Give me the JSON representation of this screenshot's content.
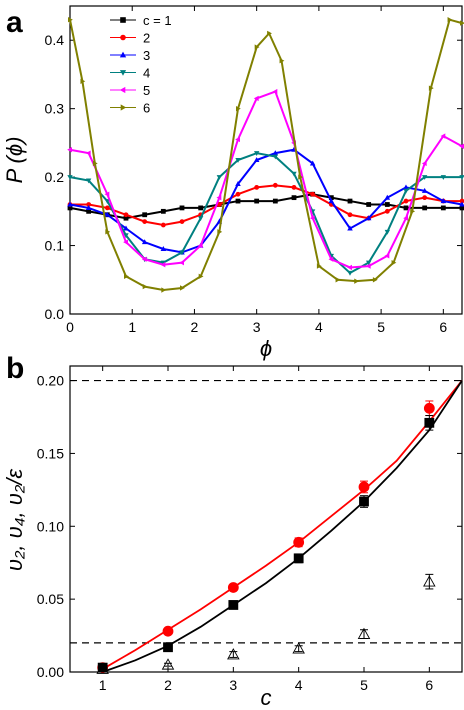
{
  "figure": {
    "panels": [
      "a",
      "b"
    ]
  },
  "chart_data": [
    {
      "panel": "a",
      "type": "scatter",
      "xlabel": "ϕ",
      "ylabel": "P (ϕ)",
      "xlim": [
        0,
        6.3
      ],
      "ylim": [
        0.0,
        0.45
      ],
      "xticks": [
        0,
        1,
        2,
        3,
        4,
        5,
        6
      ],
      "yticks": [
        0.0,
        0.1,
        0.2,
        0.3,
        0.4
      ],
      "ytick_labels": [
        "0.0",
        "0.1",
        "0.2",
        "0.3",
        "0.4"
      ],
      "legend_position": "top-left",
      "series": [
        {
          "name": "c = 1",
          "color": "#000000",
          "marker": "square",
          "x": [
            0,
            0.3,
            0.6,
            0.9,
            1.2,
            1.5,
            1.8,
            2.1,
            2.4,
            2.7,
            3.0,
            3.3,
            3.6,
            3.9,
            4.2,
            4.5,
            4.8,
            5.1,
            5.4,
            5.7,
            6.0,
            6.3
          ],
          "y": [
            0.155,
            0.15,
            0.145,
            0.14,
            0.145,
            0.15,
            0.155,
            0.155,
            0.16,
            0.165,
            0.165,
            0.165,
            0.17,
            0.175,
            0.17,
            0.165,
            0.16,
            0.16,
            0.155,
            0.155,
            0.155,
            0.155
          ]
        },
        {
          "name": "2",
          "color": "#ff0000",
          "marker": "circle",
          "x": [
            0,
            0.3,
            0.6,
            0.9,
            1.2,
            1.5,
            1.8,
            2.1,
            2.4,
            2.7,
            3.0,
            3.3,
            3.6,
            3.9,
            4.2,
            4.5,
            4.8,
            5.1,
            5.4,
            5.7,
            6.0,
            6.3
          ],
          "y": [
            0.16,
            0.16,
            0.155,
            0.145,
            0.135,
            0.13,
            0.135,
            0.145,
            0.16,
            0.175,
            0.185,
            0.188,
            0.185,
            0.175,
            0.16,
            0.145,
            0.14,
            0.15,
            0.165,
            0.17,
            0.165,
            0.165
          ]
        },
        {
          "name": "3",
          "color": "#0000ff",
          "marker": "triangle-up",
          "x": [
            0,
            0.3,
            0.6,
            0.9,
            1.2,
            1.5,
            1.8,
            2.1,
            2.4,
            2.7,
            3.0,
            3.3,
            3.6,
            3.9,
            4.2,
            4.5,
            4.8,
            5.1,
            5.4,
            5.7,
            6.0,
            6.3
          ],
          "y": [
            0.16,
            0.155,
            0.145,
            0.125,
            0.105,
            0.095,
            0.09,
            0.1,
            0.135,
            0.19,
            0.225,
            0.235,
            0.24,
            0.22,
            0.165,
            0.125,
            0.14,
            0.17,
            0.185,
            0.18,
            0.165,
            0.16
          ]
        },
        {
          "name": "4",
          "color": "#008080",
          "marker": "triangle-down",
          "x": [
            0,
            0.3,
            0.6,
            0.9,
            1.2,
            1.5,
            1.8,
            2.1,
            2.4,
            2.7,
            3.0,
            3.3,
            3.6,
            3.9,
            4.2,
            4.5,
            4.8,
            5.1,
            5.4,
            5.7,
            6.0,
            6.3
          ],
          "y": [
            0.2,
            0.195,
            0.165,
            0.115,
            0.08,
            0.075,
            0.09,
            0.14,
            0.2,
            0.225,
            0.235,
            0.23,
            0.205,
            0.15,
            0.085,
            0.06,
            0.075,
            0.12,
            0.18,
            0.2,
            0.2,
            0.2
          ]
        },
        {
          "name": "5",
          "color": "#ff00ff",
          "marker": "triangle-left",
          "x": [
            0,
            0.3,
            0.6,
            0.9,
            1.2,
            1.5,
            1.8,
            2.1,
            2.4,
            2.7,
            3.0,
            3.3,
            3.6,
            3.9,
            4.2,
            4.5,
            4.8,
            5.1,
            5.4,
            5.7,
            6.0,
            6.3
          ],
          "y": [
            0.24,
            0.235,
            0.175,
            0.105,
            0.08,
            0.072,
            0.075,
            0.1,
            0.17,
            0.255,
            0.315,
            0.325,
            0.25,
            0.14,
            0.08,
            0.068,
            0.07,
            0.085,
            0.14,
            0.22,
            0.26,
            0.245
          ]
        },
        {
          "name": "6",
          "color": "#808000",
          "marker": "triangle-right",
          "x": [
            0,
            0.2,
            0.4,
            0.6,
            0.9,
            1.2,
            1.5,
            1.8,
            2.1,
            2.4,
            2.7,
            3.0,
            3.2,
            3.4,
            3.7,
            4.0,
            4.3,
            4.6,
            4.9,
            5.2,
            5.5,
            5.8,
            6.1,
            6.3
          ],
          "y": [
            0.43,
            0.34,
            0.22,
            0.12,
            0.055,
            0.04,
            0.035,
            0.038,
            0.055,
            0.12,
            0.3,
            0.39,
            0.41,
            0.37,
            0.2,
            0.07,
            0.05,
            0.048,
            0.05,
            0.075,
            0.15,
            0.33,
            0.43,
            0.425
          ]
        }
      ]
    },
    {
      "panel": "b",
      "type": "scatter",
      "xlabel": "c",
      "ylabel": "υ₂, υ₄, υ₂/ε",
      "xlim": [
        0.5,
        6.5
      ],
      "ylim": [
        0.0,
        0.21
      ],
      "xticks": [
        1,
        2,
        3,
        4,
        5,
        6
      ],
      "yticks": [
        0.0,
        0.05,
        0.1,
        0.15,
        0.2
      ],
      "ytick_labels": [
        "0.00",
        "0.05",
        "0.10",
        "0.15",
        "0.20"
      ],
      "reference_lines": [
        0.2,
        0.02
      ],
      "series": [
        {
          "marker": "circle",
          "color": "#ff0000",
          "x": [
            1,
            2,
            3,
            4,
            5,
            6
          ],
          "y": [
            0.003,
            0.028,
            0.058,
            0.089,
            0.127,
            0.181
          ],
          "error": [
            0.001,
            0.001,
            0.002,
            0.003,
            0.004,
            0.005
          ]
        },
        {
          "marker": "square",
          "color": "#000000",
          "x": [
            1,
            2,
            3,
            4,
            5,
            6
          ],
          "y": [
            0.003,
            0.017,
            0.046,
            0.078,
            0.117,
            0.171
          ],
          "error": [
            0.001,
            0.001,
            0.002,
            0.003,
            0.004,
            0.005
          ]
        },
        {
          "marker": "triangle-open",
          "color": "#000000",
          "x": [
            1,
            2,
            3,
            4,
            5,
            6
          ],
          "y": [
            0.002,
            0.005,
            0.012,
            0.016,
            0.026,
            0.062
          ],
          "error": [
            0.001,
            0.001,
            0.002,
            0.002,
            0.003,
            0.005
          ]
        }
      ],
      "fit_curves": [
        {
          "color": "#ff0000",
          "x": [
            1,
            1.5,
            2,
            2.5,
            3,
            3.5,
            4,
            4.5,
            5,
            5.5,
            6,
            6.5
          ],
          "y": [
            0.002,
            0.015,
            0.029,
            0.043,
            0.058,
            0.073,
            0.089,
            0.107,
            0.125,
            0.145,
            0.172,
            0.2
          ]
        },
        {
          "color": "#000000",
          "x": [
            1,
            1.5,
            2,
            2.5,
            3,
            3.5,
            4,
            4.5,
            5,
            5.5,
            6,
            6.5
          ],
          "y": [
            0.0,
            0.008,
            0.018,
            0.031,
            0.046,
            0.061,
            0.078,
            0.097,
            0.117,
            0.14,
            0.166,
            0.2
          ]
        }
      ]
    }
  ]
}
